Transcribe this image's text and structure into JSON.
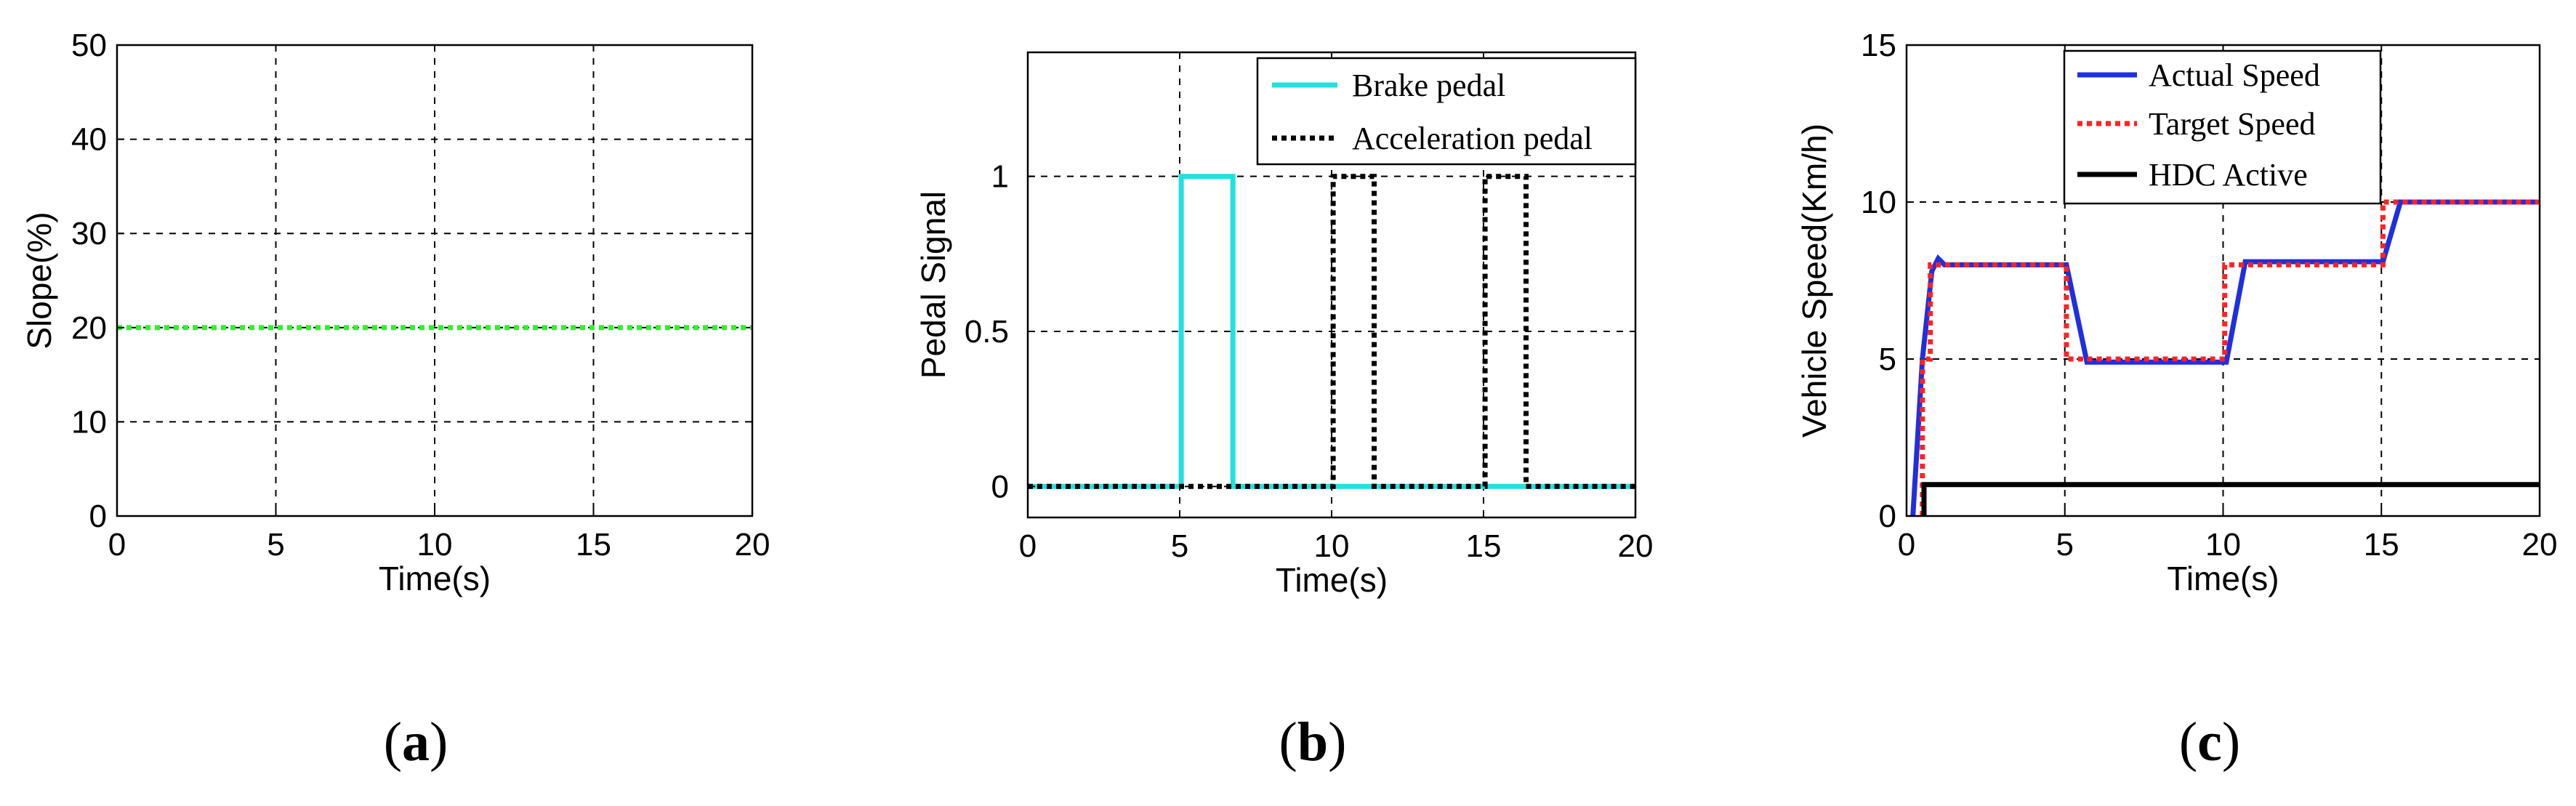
{
  "chart_data": [
    {
      "type": "line",
      "xlabel": "Time(s)",
      "ylabel": "Slope(%)",
      "xlim": [
        0,
        20
      ],
      "ylim": [
        0,
        50
      ],
      "xticks": [
        "0",
        "5",
        "10",
        "15",
        "20"
      ],
      "yticks": [
        "0",
        "10",
        "20",
        "30",
        "40",
        "50"
      ],
      "grid": true,
      "series": [
        {
          "color": "#33ee33",
          "style": "dotted",
          "x": [
            0,
            20
          ],
          "y": [
            20,
            20
          ]
        }
      ],
      "caption": {
        "open": "(",
        "letter": "a",
        "close": ")"
      }
    },
    {
      "type": "line",
      "xlabel": "Time(s)",
      "ylabel": "Pedal Signal",
      "xlim": [
        0,
        20
      ],
      "ylim": [
        -0.1,
        1.4
      ],
      "xticks": [
        "0",
        "5",
        "10",
        "15",
        "20"
      ],
      "yticks": [
        "0",
        "0.5",
        "1"
      ],
      "ytick_values": [
        0,
        0.5,
        1
      ],
      "grid": true,
      "legend_position": "top-right",
      "series": [
        {
          "name": "Brake pedal",
          "color": "#22e0e0",
          "style": "solid",
          "x": [
            0,
            5.05,
            5.05,
            6.75,
            6.75,
            20
          ],
          "y": [
            0,
            0,
            1,
            1,
            0,
            0
          ]
        },
        {
          "name": "Acceleration pedal",
          "color": "#000000",
          "style": "dotted",
          "x": [
            0,
            10.05,
            10.05,
            11.4,
            11.4,
            15.05,
            15.05,
            16.4,
            16.4,
            20
          ],
          "y": [
            0,
            0,
            1,
            1,
            0,
            0,
            1,
            1,
            0,
            0
          ]
        }
      ],
      "caption": {
        "open": "(",
        "letter": "b",
        "close": ")"
      }
    },
    {
      "type": "line",
      "xlabel": "Time(s)",
      "ylabel": "Vehicle Speed(Km/h)",
      "xlim": [
        0,
        20
      ],
      "ylim": [
        0,
        15
      ],
      "xticks": [
        "0",
        "5",
        "10",
        "15",
        "20"
      ],
      "yticks": [
        "0",
        "5",
        "10",
        "15"
      ],
      "grid": true,
      "legend_position": "top",
      "series": [
        {
          "name": "Actual Speed",
          "color": "#1f2fe0",
          "style": "solid",
          "x": [
            0.2,
            0.5,
            0.8,
            1.0,
            1.2,
            5.05,
            5.7,
            10.1,
            10.7,
            15.05,
            15.6,
            20
          ],
          "y": [
            0,
            5.0,
            7.8,
            8.2,
            8.0,
            8.0,
            4.9,
            4.9,
            8.1,
            8.1,
            10.0,
            10.0
          ]
        },
        {
          "name": "Target Speed",
          "color": "#ff2222",
          "style": "dotted",
          "x": [
            0.5,
            0.5,
            0.75,
            0.75,
            5.05,
            5.05,
            10.05,
            10.05,
            15.05,
            15.05,
            20
          ],
          "y": [
            0,
            5.0,
            5.0,
            8.0,
            8.0,
            5.0,
            5.0,
            8.0,
            8.0,
            10.0,
            10.0
          ]
        },
        {
          "name": "HDC Active",
          "color": "#000000",
          "style": "solid",
          "x": [
            0.55,
            0.55,
            20
          ],
          "y": [
            0,
            1,
            1
          ]
        }
      ],
      "caption": {
        "open": "(",
        "letter": "c",
        "close": ")"
      }
    }
  ]
}
